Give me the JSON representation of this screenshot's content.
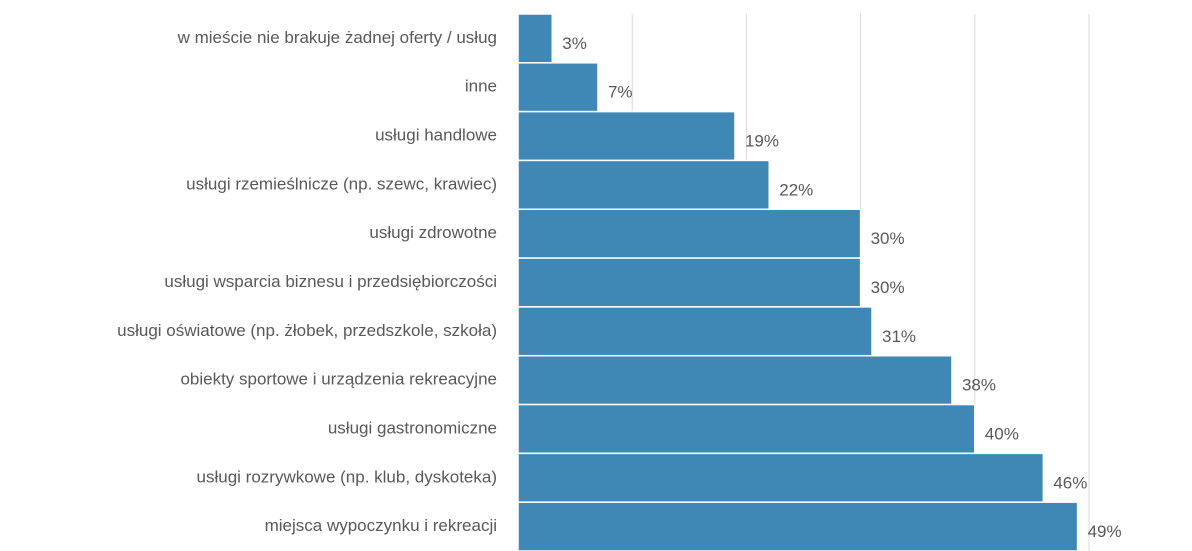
{
  "chart_data": {
    "type": "bar",
    "orientation": "horizontal",
    "categories": [
      "w mieście nie brakuje żadnej oferty / usług",
      "inne",
      "usługi handlowe",
      "usługi rzemieślnicze (np. szewc, krawiec)",
      "usługi zdrowotne",
      "usługi wsparcia biznesu i przedsiębiorczości",
      "usługi oświatowe (np. żłobek, przedszkole, szkoła)",
      "obiekty sportowe i urządzenia rekreacyjne",
      "usługi gastronomiczne",
      "usługi rozrywkowe (np. klub, dyskoteka)",
      "miejsca wypoczynku i rekreacji"
    ],
    "values": [
      3,
      7,
      19,
      22,
      30,
      30,
      31,
      38,
      40,
      46,
      49
    ],
    "value_labels": [
      "3%",
      "7%",
      "19%",
      "22%",
      "30%",
      "30%",
      "31%",
      "38%",
      "40%",
      "46%",
      "49%"
    ],
    "color": "#3f88b5",
    "xlim": [
      0,
      50
    ],
    "xticks": [
      0,
      10,
      20,
      30,
      40,
      50
    ],
    "grid": true
  }
}
